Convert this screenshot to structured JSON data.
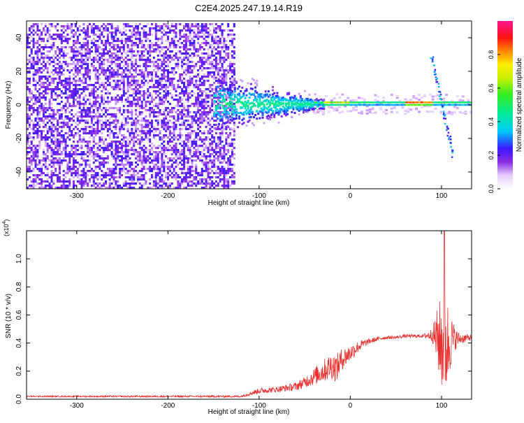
{
  "title": "C2E4.2025.247.19.14.R19",
  "chart_data": [
    {
      "type": "heatmap",
      "xlabel": "Height of straight line (km)",
      "ylabel": "Frequency (Hz)",
      "xlim": [
        -355,
        133
      ],
      "ylim": [
        -50,
        50
      ],
      "xticks": [
        -300,
        -200,
        -100,
        0,
        100
      ],
      "yticks": [
        -40,
        -20,
        0,
        20,
        40
      ],
      "colorbar": {
        "label": "Normalized spectral amplitude",
        "range": [
          0,
          1
        ],
        "ticks": [
          "0.0",
          "0.2",
          "0.4",
          "0.6",
          "0.8"
        ],
        "tick_values": [
          0.0,
          0.2,
          0.4,
          0.6,
          0.8
        ]
      },
      "features": {
        "noise_region_x": [
          -355,
          -128
        ],
        "broad_cloud_x": [
          -150,
          -30
        ],
        "narrow_line_freq": 1,
        "burst_x": 100
      }
    },
    {
      "type": "line",
      "xlabel": "Height of straight line (km)",
      "ylabel": "SNR (10 * v/v)",
      "yscale_label": "(x10",
      "yscale_exp": "4",
      "xlim": [
        -355,
        133
      ],
      "ylim": [
        0,
        1.2
      ],
      "xticks": [
        -300,
        -200,
        -100,
        0,
        100
      ],
      "yticks": [
        "0.0",
        "0.2",
        "0.4",
        "0.6",
        "0.8",
        "1.0"
      ],
      "ytick_values": [
        0.0,
        0.2,
        0.4,
        0.6,
        0.8,
        1.0
      ],
      "color": "#e8302e",
      "envelope": {
        "x": [
          -355,
          -120,
          -100,
          -80,
          -60,
          -50,
          -40,
          -30,
          -20,
          -15,
          -10,
          0,
          10,
          20,
          30,
          40,
          50,
          60,
          80,
          90,
          95,
          100,
          105,
          110,
          115,
          120,
          133
        ],
        "base": [
          0.02,
          0.02,
          0.06,
          0.07,
          0.09,
          0.12,
          0.16,
          0.2,
          0.24,
          0.22,
          0.28,
          0.33,
          0.38,
          0.41,
          0.43,
          0.44,
          0.44,
          0.45,
          0.45,
          0.46,
          0.44,
          0.4,
          0.38,
          0.42,
          0.43,
          0.43,
          0.44
        ],
        "noise": [
          0.005,
          0.007,
          0.02,
          0.02,
          0.03,
          0.04,
          0.06,
          0.08,
          0.1,
          0.1,
          0.08,
          0.06,
          0.04,
          0.02,
          0.015,
          0.012,
          0.012,
          0.012,
          0.012,
          0.05,
          0.2,
          0.35,
          0.38,
          0.2,
          0.08,
          0.04,
          0.02
        ]
      },
      "peak": {
        "x": 103,
        "y": 1.2
      }
    }
  ]
}
